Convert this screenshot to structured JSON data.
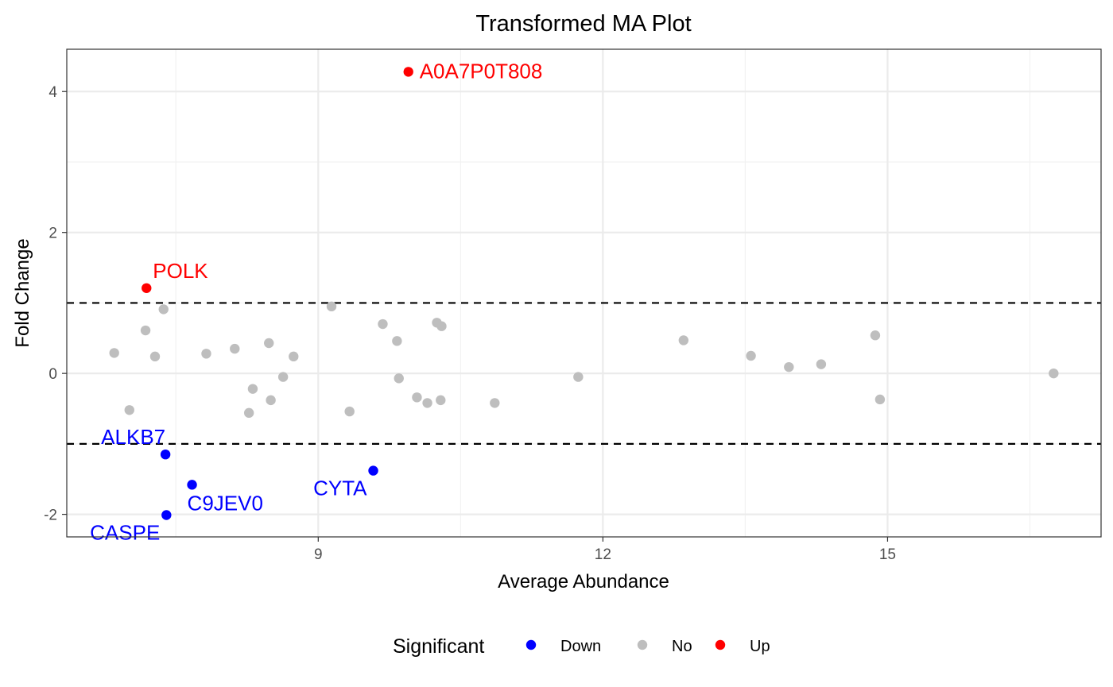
{
  "chart_data": {
    "type": "scatter",
    "title": "Transformed MA Plot",
    "xlabel": "Average Abundance",
    "ylabel": "Fold Change",
    "xlim": [
      6.35,
      17.25
    ],
    "ylim": [
      -2.32,
      4.6
    ],
    "x_ticks": [
      9,
      12,
      15
    ],
    "y_ticks": [
      -2,
      0,
      2,
      4
    ],
    "x_minor_ticks": [
      7.5,
      10.5,
      13.5,
      16.5
    ],
    "y_minor_ticks": [
      -1,
      1,
      3
    ],
    "grid": true,
    "threshold_lines": [
      1,
      -1
    ],
    "legend": {
      "title": "Significant",
      "position": "bottom",
      "entries": [
        {
          "label": "Down",
          "color": "#0000ff"
        },
        {
          "label": "No",
          "color": "#bebebe"
        },
        {
          "label": "Up",
          "color": "#ff0000"
        }
      ]
    },
    "colors": {
      "Down": "#0000ff",
      "No": "#bebebe",
      "Up": "#ff0000"
    },
    "points": [
      {
        "x": 9.95,
        "y": 4.28,
        "group": "Up",
        "label": "A0A7P0T808",
        "label_pos": "right"
      },
      {
        "x": 7.19,
        "y": 1.21,
        "group": "Up",
        "label": "POLK",
        "label_pos": "upper-right"
      },
      {
        "x": 7.39,
        "y": -1.15,
        "group": "Down",
        "label": "ALKB7",
        "label_pos": "upper-left"
      },
      {
        "x": 7.67,
        "y": -1.58,
        "group": "Down",
        "label": "C9JEV0",
        "label_pos": "lower-right"
      },
      {
        "x": 7.4,
        "y": -2.01,
        "group": "Down",
        "label": "CASPE",
        "label_pos": "lower-left"
      },
      {
        "x": 9.58,
        "y": -1.38,
        "group": "Down",
        "label": "CYTA",
        "label_pos": "lower-left"
      },
      {
        "x": 6.85,
        "y": 0.29,
        "group": "No"
      },
      {
        "x": 7.01,
        "y": -0.52,
        "group": "No"
      },
      {
        "x": 7.18,
        "y": 0.61,
        "group": "No"
      },
      {
        "x": 7.28,
        "y": 0.24,
        "group": "No"
      },
      {
        "x": 7.37,
        "y": 0.91,
        "group": "No"
      },
      {
        "x": 7.82,
        "y": 0.28,
        "group": "No"
      },
      {
        "x": 8.12,
        "y": 0.35,
        "group": "No"
      },
      {
        "x": 8.27,
        "y": -0.56,
        "group": "No"
      },
      {
        "x": 8.31,
        "y": -0.22,
        "group": "No"
      },
      {
        "x": 8.48,
        "y": 0.43,
        "group": "No"
      },
      {
        "x": 8.5,
        "y": -0.38,
        "group": "No"
      },
      {
        "x": 8.63,
        "y": -0.05,
        "group": "No"
      },
      {
        "x": 8.74,
        "y": 0.24,
        "group": "No"
      },
      {
        "x": 9.14,
        "y": 0.95,
        "group": "No"
      },
      {
        "x": 9.33,
        "y": -0.54,
        "group": "No"
      },
      {
        "x": 9.68,
        "y": 0.7,
        "group": "No"
      },
      {
        "x": 9.83,
        "y": 0.46,
        "group": "No"
      },
      {
        "x": 9.85,
        "y": -0.07,
        "group": "No"
      },
      {
        "x": 10.04,
        "y": -0.34,
        "group": "No"
      },
      {
        "x": 10.15,
        "y": -0.42,
        "group": "No"
      },
      {
        "x": 10.25,
        "y": 0.72,
        "group": "No"
      },
      {
        "x": 10.29,
        "y": -0.38,
        "group": "No"
      },
      {
        "x": 10.3,
        "y": 0.67,
        "group": "No"
      },
      {
        "x": 10.86,
        "y": -0.42,
        "group": "No"
      },
      {
        "x": 11.74,
        "y": -0.05,
        "group": "No"
      },
      {
        "x": 12.85,
        "y": 0.47,
        "group": "No"
      },
      {
        "x": 13.56,
        "y": 0.25,
        "group": "No"
      },
      {
        "x": 13.96,
        "y": 0.09,
        "group": "No"
      },
      {
        "x": 14.3,
        "y": 0.13,
        "group": "No"
      },
      {
        "x": 14.87,
        "y": 0.54,
        "group": "No"
      },
      {
        "x": 14.92,
        "y": -0.37,
        "group": "No"
      },
      {
        "x": 16.75,
        "y": 0.0,
        "group": "No"
      }
    ]
  }
}
